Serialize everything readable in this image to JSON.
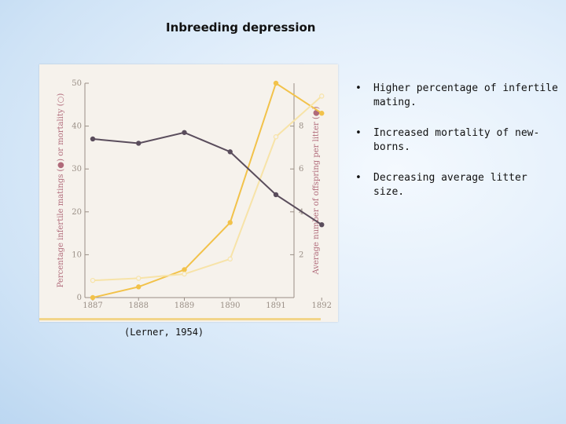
{
  "slide": {
    "title": "Inbreeding depression",
    "citation": "(Lerner, 1954)",
    "bullets": [
      "Higher percentage of infertile mating.",
      "Increased mortality of new-borns.",
      "Decreasing average litter size."
    ],
    "bullet_symbol": "•"
  },
  "chart_data": {
    "type": "line",
    "x": [
      1887,
      1888,
      1889,
      1890,
      1891,
      1892
    ],
    "xticks": [
      "1887",
      "1888",
      "1889",
      "1890",
      "1891",
      "1892"
    ],
    "ylabel": "Percentage infertile matings (●) or mortality (○)",
    "ylim": [
      0,
      50
    ],
    "yticks": [
      "0",
      "10",
      "20",
      "30",
      "40",
      "50"
    ],
    "y2label": "Average number of offspring per litter (●)",
    "y2lim": [
      0,
      10
    ],
    "y2ticks": [
      "2",
      "4",
      "6",
      "8"
    ],
    "series": [
      {
        "axis": "left",
        "color": "#f2c24a",
        "marker": "filled",
        "values": [
          0,
          2.5,
          6.5,
          17.5,
          50,
          43
        ]
      },
      {
        "axis": "left",
        "color": "#f7e3a8",
        "marker": "open",
        "values": [
          4,
          4.5,
          5.5,
          9,
          37.5,
          47
        ]
      },
      {
        "axis": "right",
        "color": "#5a4d5c",
        "marker": "filled",
        "values": [
          7.4,
          7.2,
          7.7,
          6.8,
          4.8,
          3.4
        ]
      }
    ]
  }
}
